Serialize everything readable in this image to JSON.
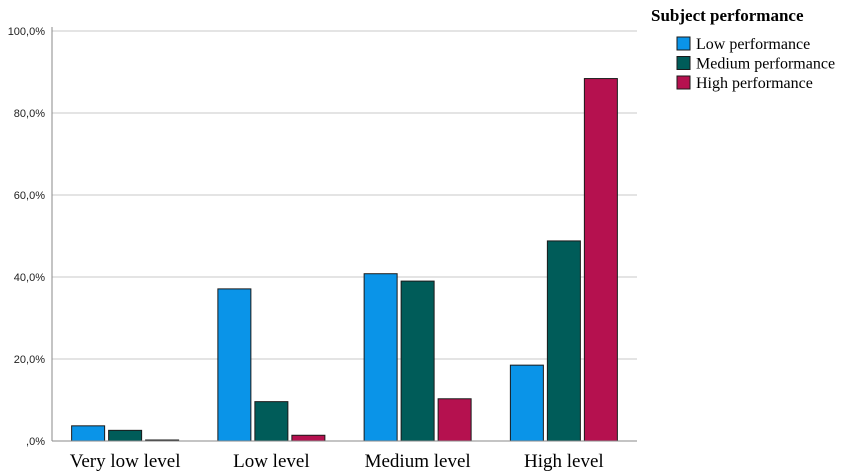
{
  "chart_data": {
    "type": "bar",
    "title": "",
    "xlabel": "",
    "ylabel": "",
    "categories": [
      "Very low level",
      "Low level",
      "Medium level",
      "High level"
    ],
    "series": [
      {
        "name": "Low performance",
        "color": "#0a94e8",
        "values": [
          3.7,
          37.1,
          40.8,
          18.5
        ]
      },
      {
        "name": "Medium performance",
        "color": "#005c59",
        "values": [
          2.6,
          9.6,
          39.0,
          48.8
        ]
      },
      {
        "name": "High performance",
        "color": "#b5114f",
        "values": [
          0.2,
          1.4,
          10.3,
          88.4
        ]
      }
    ],
    "ylim": [
      0,
      100
    ],
    "yticks": [
      0,
      20,
      40,
      60,
      80,
      100
    ],
    "ytick_labels": [
      ",0%",
      "20,0%",
      "40,0%",
      "60,0%",
      "80,0%",
      "100,0%"
    ],
    "grid": true,
    "legend": {
      "title": "Subject performance",
      "position": "top-right"
    }
  }
}
